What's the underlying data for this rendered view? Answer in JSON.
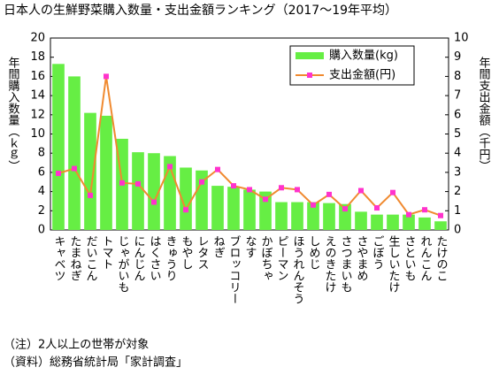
{
  "chart_data": {
    "type": "bar_line",
    "title": "日本人の生鮮野菜購入数量・支出金額ランキング（2017～19年平均）",
    "y_label": "年間購入数量（ｋｇ）",
    "y2_label": "年間支出金額（千円）",
    "categories": [
      "キャベツ",
      "たまねぎ",
      "だいこん",
      "トマト",
      "じゃがいも",
      "にんじん",
      "はくさい",
      "きゅうり",
      "もやし",
      "レタス",
      "ねぎ",
      "ブロッコリー",
      "なす",
      "かぼちゃ",
      "ピーマン",
      "ほうれんそう",
      "しめじ",
      "えのきたけ",
      "さつまいも",
      "さやまめ",
      "ごぼう",
      "生しいたけ",
      "さといも",
      "れんこん",
      "たけのこ"
    ],
    "series": [
      {
        "name": "購入数量(kg)",
        "color": "#66ee44",
        "kind": "bar",
        "values": [
          17.3,
          16.0,
          12.2,
          11.9,
          9.5,
          8.1,
          8.0,
          7.7,
          6.5,
          6.2,
          4.6,
          4.5,
          4.2,
          4.0,
          2.9,
          2.9,
          2.9,
          2.8,
          2.7,
          1.9,
          1.6,
          1.6,
          1.6,
          1.3,
          0.9
        ]
      },
      {
        "name": "支出金額(円)",
        "color": "#f08a30",
        "marker_color": "#ff33cc",
        "kind": "line",
        "axis": "y2",
        "values": [
          2.95,
          3.2,
          1.8,
          8.0,
          2.45,
          2.4,
          1.45,
          3.3,
          1.05,
          2.5,
          3.15,
          2.3,
          2.1,
          1.6,
          2.2,
          2.1,
          1.3,
          1.85,
          1.1,
          2.05,
          1.15,
          1.95,
          0.8,
          1.05,
          0.75
        ]
      }
    ],
    "ylim": [
      0,
      20
    ],
    "yticks": [
      0,
      2,
      4,
      6,
      8,
      10,
      12,
      14,
      16,
      18,
      20
    ],
    "y2lim": [
      0,
      10
    ],
    "y2ticks": [
      0,
      1,
      2,
      3,
      4,
      5,
      6,
      7,
      8,
      9,
      10
    ],
    "legend": "top-right",
    "notes": [
      "（注）2人以上の世帯が対象",
      "（資料）総務省統計局「家計調査」"
    ]
  }
}
